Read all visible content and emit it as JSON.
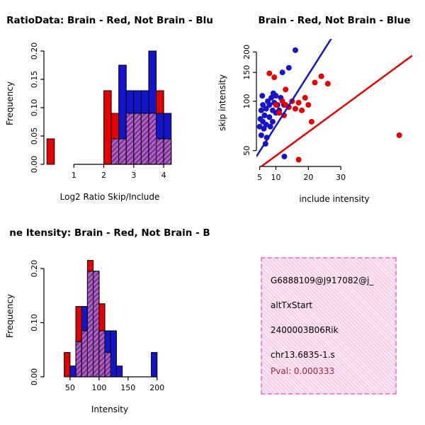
{
  "page": {
    "background": "#ffffff"
  },
  "colors": {
    "red": "#e60000",
    "blue": "#1414cc",
    "purple": "#6f3f9e",
    "hatch": "#d95fd0",
    "axis": "#000000",
    "pval": "#a02440",
    "info_bg": "#fce4f2",
    "info_border": "#ee85d5"
  },
  "chart_data": [
    {
      "type": "bar",
      "variant": "overlaid-histogram",
      "panel": "top-left",
      "title": "RatioData: Brain - Red, Not Brain - Blu",
      "xlabel": "Log2 Ratio Skip/Include",
      "ylabel": "Frequency",
      "xlim": [
        0,
        4.4
      ],
      "ylim": [
        0,
        0.215
      ],
      "xticks": [
        1,
        2,
        3,
        4
      ],
      "xtick_labels": [
        "1",
        "2",
        "3",
        "4"
      ],
      "yticks": [
        0,
        0.05,
        0.1,
        0.15,
        0.2
      ],
      "ytick_labels": [
        "0.00",
        "0.05",
        "0.10",
        "0.15",
        "0.20"
      ],
      "bin_width": 0.25,
      "grid": false,
      "legend": "none",
      "series": [
        {
          "name": "red",
          "bars": [
            [
              0.1,
              0.045
            ],
            [
              2.0,
              0.13
            ],
            [
              2.25,
              0.09
            ],
            [
              2.5,
              0.09
            ],
            [
              2.75,
              0.13
            ],
            [
              3.0,
              0.13
            ],
            [
              3.25,
              0.13
            ],
            [
              3.5,
              0.09
            ],
            [
              3.75,
              0.13
            ]
          ]
        },
        {
          "name": "blue",
          "bars": [
            [
              2.25,
              0.045
            ],
            [
              2.5,
              0.175
            ],
            [
              2.75,
              0.13
            ],
            [
              3.0,
              0.13
            ],
            [
              3.25,
              0.13
            ],
            [
              3.5,
              0.2
            ],
            [
              3.75,
              0.09
            ],
            [
              4.0,
              0.09
            ]
          ]
        },
        {
          "name": "overlap",
          "bars": [
            [
              2.25,
              0.045
            ],
            [
              2.5,
              0.045
            ],
            [
              2.75,
              0.09
            ],
            [
              3.0,
              0.09
            ],
            [
              3.25,
              0.09
            ],
            [
              3.5,
              0.09
            ],
            [
              3.75,
              0.045
            ],
            [
              4.0,
              0.045
            ]
          ]
        }
      ]
    },
    {
      "type": "scatter",
      "panel": "top-right",
      "title": "Brain - Red, Not Brain - Blue",
      "xlabel": "include intensity",
      "ylabel": "skip intensity",
      "xlim": [
        4,
        52
      ],
      "ylim": [
        40,
        240
      ],
      "yscale": "log",
      "xticks": [
        5,
        10,
        20,
        30
      ],
      "xtick_labels": [
        "5",
        "10",
        "20",
        "30"
      ],
      "yticks": [
        50,
        100,
        150,
        200
      ],
      "ytick_labels": [
        "50",
        "100",
        "150",
        "200"
      ],
      "grid": false,
      "legend": "none",
      "series": [
        {
          "name": "blue",
          "points": [
            [
              5,
              70
            ],
            [
              5.2,
              78
            ],
            [
              5.5,
              62
            ],
            [
              5.5,
              88
            ],
            [
              5.8,
              108
            ],
            [
              6,
              75
            ],
            [
              6,
              95
            ],
            [
              6.3,
              68
            ],
            [
              6.5,
              82
            ],
            [
              6.8,
              55
            ],
            [
              7,
              72
            ],
            [
              7,
              90
            ],
            [
              7.2,
              60
            ],
            [
              7.5,
              100
            ],
            [
              8,
              80
            ],
            [
              8,
              95
            ],
            [
              8.3,
              70
            ],
            [
              8.6,
              105
            ],
            [
              9,
              75
            ],
            [
              9,
              88
            ],
            [
              9.2,
              112
            ],
            [
              9.5,
              98
            ],
            [
              10,
              85
            ],
            [
              10,
              108
            ],
            [
              10.5,
              95
            ],
            [
              11,
              88
            ],
            [
              11.5,
              105
            ],
            [
              12,
              150
            ],
            [
              12.5,
              95
            ],
            [
              12.6,
              46
            ],
            [
              16,
              205
            ],
            [
              14,
              160
            ]
          ]
        },
        {
          "name": "red",
          "points": [
            [
              8,
              148
            ],
            [
              9.5,
              140
            ],
            [
              10,
              95
            ],
            [
              11,
              85
            ],
            [
              12,
              100
            ],
            [
              12.5,
              82
            ],
            [
              13,
              95
            ],
            [
              13,
              118
            ],
            [
              14,
              92
            ],
            [
              15,
              100
            ],
            [
              16,
              90
            ],
            [
              17,
              44
            ],
            [
              17,
              98
            ],
            [
              18,
              88
            ],
            [
              19,
              105
            ],
            [
              20,
              95
            ],
            [
              21,
              75
            ],
            [
              22,
              130
            ],
            [
              24,
              142
            ],
            [
              26,
              128
            ],
            [
              48,
              62
            ]
          ]
        }
      ],
      "lines": [
        {
          "color": "red",
          "from": [
            4,
            38
          ],
          "to": [
            52,
            190
          ]
        },
        {
          "color": "blue",
          "from": [
            4,
            46
          ],
          "to": [
            31,
            320
          ]
        }
      ]
    },
    {
      "type": "bar",
      "variant": "overlaid-histogram",
      "panel": "bottom-left",
      "title": "ne Itensity: Brain - Red, Not Brain - B",
      "xlabel": "Intensity",
      "ylabel": "Frequency",
      "xlim": [
        5,
        232
      ],
      "ylim": [
        0,
        0.225
      ],
      "xticks": [
        50,
        100,
        150,
        200
      ],
      "xtick_labels": [
        "50",
        "100",
        "150",
        "200"
      ],
      "yticks": [
        0,
        0.1,
        0.2
      ],
      "ytick_labels": [
        "0.00",
        "0.10",
        "0.20"
      ],
      "bin_width": 10,
      "grid": false,
      "legend": "none",
      "series": [
        {
          "name": "red",
          "bars": [
            [
              40,
              0.045
            ],
            [
              60,
              0.13
            ],
            [
              70,
              0.085
            ],
            [
              80,
              0.215
            ],
            [
              90,
              0.195
            ],
            [
              100,
              0.135
            ],
            [
              110,
              0.045
            ]
          ]
        },
        {
          "name": "blue",
          "bars": [
            [
              50,
              0.02
            ],
            [
              60,
              0.065
            ],
            [
              70,
              0.13
            ],
            [
              80,
              0.195
            ],
            [
              90,
              0.195
            ],
            [
              100,
              0.085
            ],
            [
              110,
              0.085
            ],
            [
              120,
              0.085
            ],
            [
              130,
              0.02
            ],
            [
              190,
              0.045
            ]
          ]
        },
        {
          "name": "overlap",
          "bars": [
            [
              60,
              0.065
            ],
            [
              70,
              0.085
            ],
            [
              80,
              0.195
            ],
            [
              90,
              0.195
            ],
            [
              100,
              0.085
            ],
            [
              110,
              0.045
            ]
          ]
        }
      ]
    }
  ],
  "info_panel": {
    "lines": [
      "G6888109@J917082@j_",
      "altTxStart",
      "2400003B06Rik",
      "chr13.6835-1.s"
    ],
    "pval": "Pval: 0.000333"
  }
}
